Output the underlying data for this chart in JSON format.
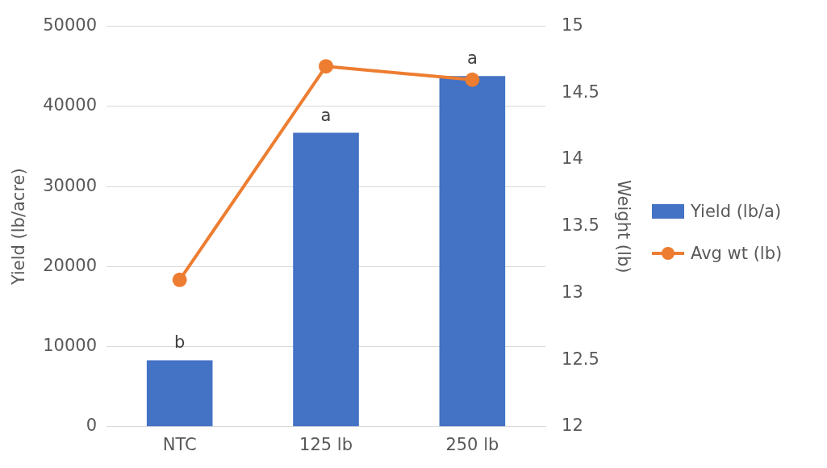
{
  "chart_data": {
    "type": "bar",
    "categories": [
      "NTC",
      "125 lb",
      "250 lb"
    ],
    "series": [
      {
        "name": "Yield (lb/a)",
        "color": "#4472c4",
        "values": [
          8300,
          36700,
          43800
        ]
      },
      {
        "name": "Avg wt (lb)",
        "type": "line",
        "axis": "y2",
        "color": "#ed7d31",
        "values": [
          13.1,
          14.7,
          14.6
        ]
      }
    ],
    "ylabel": "Yield (lb/acre)",
    "y2label": "Weight (lb)",
    "ylim": [
      0,
      50000
    ],
    "yticks": [
      0,
      10000,
      20000,
      30000,
      40000,
      50000
    ],
    "y2lim": [
      12,
      15
    ],
    "y2ticks": [
      12,
      12.5,
      13,
      13.5,
      14,
      14.5,
      15
    ],
    "annotations": [
      {
        "text": "b",
        "x": "NTC",
        "y": 8300
      },
      {
        "text": "a",
        "x": "125 lb",
        "y": 36700
      },
      {
        "text": "a",
        "x": "250 lb",
        "y": 43800
      }
    ],
    "grid": "y",
    "legend": "right",
    "marker": "circle",
    "line_style": "solid"
  }
}
